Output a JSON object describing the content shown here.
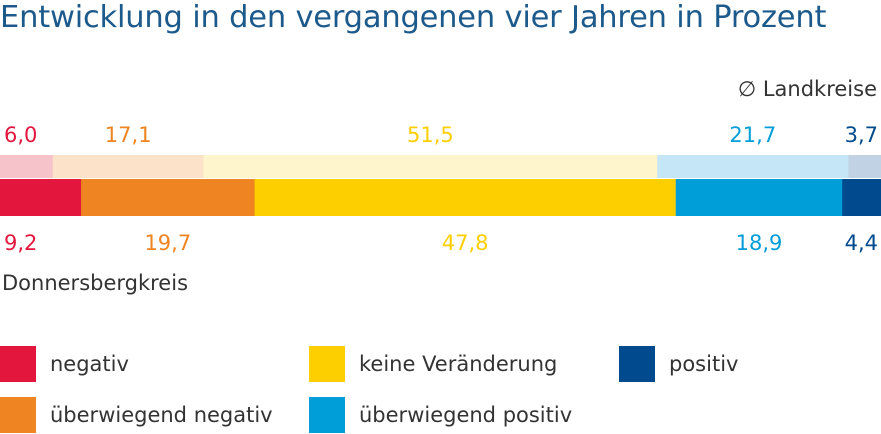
{
  "title": "Entwicklung in den vergangenen vier Jahren in Prozent",
  "chart_data": {
    "type": "bar",
    "orientation": "horizontal-stacked",
    "categories": [
      "negativ",
      "überwiegend negativ",
      "keine Veränderung",
      "überwiegend positiv",
      "positiv"
    ],
    "colors_strong": [
      "#e3173e",
      "#ee8422",
      "#fecf00",
      "#009ed8",
      "#004a8d"
    ],
    "colors_light": [
      "#f7c3cb",
      "#fbe2c8",
      "#fff5cd",
      "#c5e6f6",
      "#c0d2e3"
    ],
    "series": [
      {
        "name": "Ø Landkreise",
        "values": [
          6.0,
          17.1,
          51.5,
          21.7,
          3.7
        ],
        "labels": [
          "6,0",
          "17,1",
          "51,5",
          "21,7",
          "3,7"
        ]
      },
      {
        "name": "Donnersbergkreis",
        "values": [
          9.2,
          19.7,
          47.8,
          18.9,
          4.4
        ],
        "labels": [
          "9,2",
          "19,7",
          "47,8",
          "18,9",
          "4,4"
        ]
      }
    ],
    "label_colors": [
      "#e3173e",
      "#ee8422",
      "#fecf00",
      "#009ed8",
      "#004a8d"
    ],
    "legend": [
      "negativ",
      "keine Veränderung",
      "positiv",
      "überwiegend negativ",
      "überwiegend positiv"
    ],
    "legend_colors": [
      "#e3173e",
      "#fecf00",
      "#004a8d",
      "#ee8422",
      "#009ed8"
    ]
  }
}
